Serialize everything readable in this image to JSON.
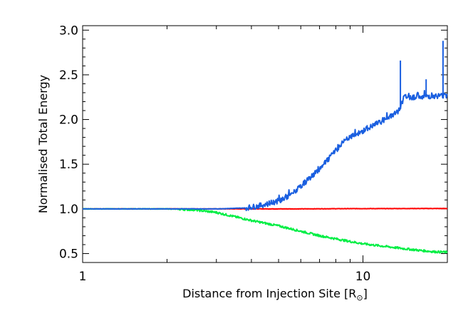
{
  "chart_data": {
    "type": "line",
    "title": "",
    "xlabel": "Distance from Injection Site [R",
    "xlabel_subscript": "⊙",
    "xlabel_suffix": "]",
    "ylabel": "Normalised Total Energy",
    "xscale": "log",
    "xlim": [
      1,
      20
    ],
    "ylim": [
      0.4,
      3.05
    ],
    "x_ticks": [
      {
        "value": 1,
        "label": "1"
      },
      {
        "value": 10,
        "label": "10"
      }
    ],
    "y_ticks": [
      {
        "value": 0.5,
        "label": "0.5"
      },
      {
        "value": 1.0,
        "label": "1.0"
      },
      {
        "value": 1.5,
        "label": "1.5"
      },
      {
        "value": 2.0,
        "label": "2.0"
      },
      {
        "value": 2.5,
        "label": "2.5"
      },
      {
        "value": 3.0,
        "label": "3.0"
      }
    ],
    "grid": false,
    "series": [
      {
        "color": "#ff0000",
        "x": [
          1,
          2,
          4,
          6,
          8,
          10,
          12,
          15,
          20
        ],
        "y": [
          1.0,
          1.0,
          1.0,
          1.0,
          1.002,
          1.003,
          1.003,
          1.004,
          1.004
        ]
      },
      {
        "color": "#00ee44",
        "x": [
          1,
          2,
          2.5,
          3,
          4,
          5,
          6,
          7,
          8,
          9,
          10,
          12,
          14,
          16,
          18,
          20
        ],
        "y": [
          1.0,
          1.0,
          0.99,
          0.96,
          0.87,
          0.81,
          0.75,
          0.7,
          0.665,
          0.635,
          0.61,
          0.58,
          0.555,
          0.535,
          0.52,
          0.515
        ]
      },
      {
        "color": "#1a5fe0",
        "x": [
          1,
          3,
          3.8,
          4.2,
          4.5,
          5,
          5.5,
          6,
          6.5,
          7,
          7.5,
          8,
          8.5,
          9,
          10,
          11,
          12,
          13,
          13.5,
          14,
          15,
          17,
          20
        ],
        "y": [
          1.0,
          1.0,
          1.01,
          1.03,
          1.05,
          1.09,
          1.15,
          1.25,
          1.35,
          1.45,
          1.55,
          1.65,
          1.75,
          1.8,
          1.87,
          1.94,
          2.0,
          2.07,
          2.1,
          2.25,
          2.25,
          2.26,
          2.27
        ]
      }
    ],
    "spikes": [
      {
        "series": 2,
        "x": 13.6,
        "y": 2.66
      },
      {
        "series": 2,
        "x": 16.8,
        "y": 2.45
      },
      {
        "series": 2,
        "x": 19.3,
        "y": 2.88
      }
    ]
  }
}
